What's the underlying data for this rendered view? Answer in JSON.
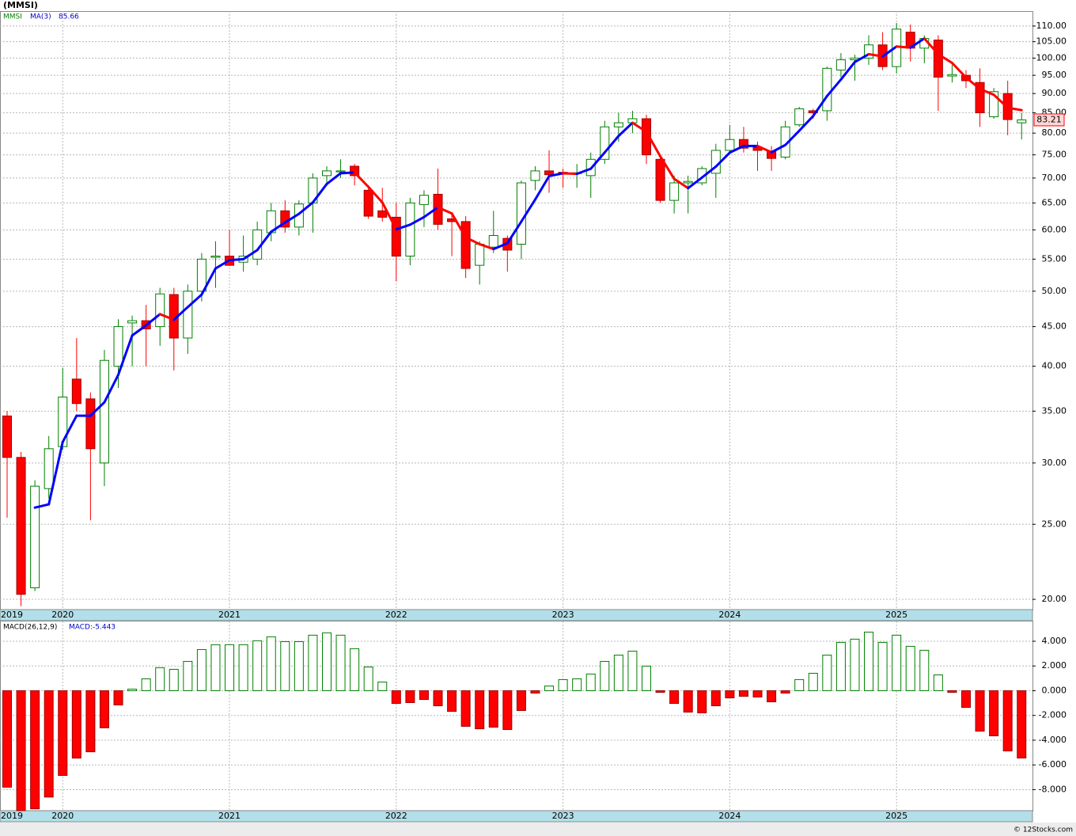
{
  "chart_data": [
    {
      "type": "candlestick",
      "title": "(MMSI)",
      "symbol": "MMSI",
      "log_scale": true,
      "grid": true,
      "up_color": "#008000",
      "down_color": "#ff0000",
      "categories": [
        "2019",
        null,
        null,
        null,
        "2020",
        null,
        null,
        null,
        null,
        null,
        null,
        null,
        null,
        null,
        null,
        null,
        "2021",
        null,
        null,
        null,
        null,
        null,
        null,
        null,
        null,
        null,
        null,
        null,
        "2022",
        null,
        null,
        null,
        null,
        null,
        null,
        null,
        null,
        null,
        null,
        null,
        "2023",
        null,
        null,
        null,
        null,
        null,
        null,
        null,
        null,
        null,
        null,
        null,
        "2024",
        null,
        null,
        null,
        null,
        null,
        null,
        null,
        null,
        null,
        null,
        null,
        "2025",
        null,
        null,
        null,
        null,
        null,
        null,
        null,
        null,
        null
      ],
      "open": [
        34.5,
        30.5,
        20.7,
        27.8,
        31.5,
        38.5,
        36.3,
        30,
        40,
        45.5,
        45.8,
        45,
        49.5,
        43.5,
        50,
        55.3,
        55.5,
        54.5,
        55,
        59.5,
        63.5,
        60.5,
        65,
        70.5,
        71.3,
        72.5,
        67.5,
        63.5,
        62.3,
        55.5,
        64.7,
        66.7,
        62,
        61.5,
        54,
        57,
        58.5,
        57.5,
        69.5,
        71.5,
        71.2,
        71,
        70.5,
        74,
        81.5,
        82.5,
        83.5,
        74,
        65.5,
        69,
        69,
        71,
        76,
        78.5,
        76.7,
        75.8,
        74.5,
        82,
        85.5,
        85.5,
        96.5,
        99.5,
        100,
        104,
        97.5,
        108,
        103,
        105.5,
        94.8,
        95,
        93,
        84,
        90,
        82.5
      ],
      "high": [
        35,
        31,
        28.5,
        32.5,
        39.8,
        43.5,
        37,
        42,
        46,
        46.5,
        48,
        50.5,
        50.5,
        51,
        56,
        58,
        60,
        59,
        61.5,
        65,
        65.5,
        65.5,
        71,
        72.5,
        74,
        73,
        68.5,
        68,
        65,
        66,
        67.5,
        72,
        63,
        62.5,
        58,
        63.5,
        59,
        69.5,
        72.5,
        76,
        72,
        73,
        75.5,
        83,
        85,
        85.5,
        84.5,
        75,
        70.5,
        70.5,
        72.5,
        77.5,
        82,
        81.5,
        78,
        77,
        83,
        86.5,
        86,
        97.5,
        101.5,
        101,
        107,
        108,
        111,
        110.5,
        107,
        107,
        98,
        96.5,
        97,
        91.5,
        93.5,
        85
      ],
      "low": [
        25.5,
        19.6,
        20.5,
        27,
        31.2,
        35,
        25.3,
        28,
        37.5,
        40,
        40,
        42.5,
        39.5,
        41.5,
        48.5,
        50.5,
        54,
        53,
        54,
        58,
        59.5,
        59,
        59.5,
        69,
        70,
        68.5,
        62,
        61.5,
        51.5,
        54,
        60.5,
        60,
        55.5,
        52,
        51,
        56,
        53,
        55,
        67.5,
        67,
        68,
        68,
        66,
        73,
        78,
        80,
        73,
        65,
        63,
        63,
        68.5,
        66,
        75.5,
        75.5,
        71.5,
        71.5,
        74,
        81.5,
        83.5,
        83,
        94.5,
        93.5,
        98,
        96.5,
        95.5,
        99,
        98.5,
        85.5,
        93,
        91.5,
        81.5,
        83.5,
        79.5,
        78.5
      ],
      "close": [
        30.5,
        20.3,
        28,
        31.3,
        36.5,
        35.8,
        31.3,
        40.7,
        45,
        45.8,
        44.7,
        49.6,
        43.5,
        50,
        55,
        55.5,
        54,
        55.5,
        60,
        63.5,
        60.5,
        64.8,
        70,
        71.5,
        71.5,
        70.5,
        62.5,
        62.3,
        55.5,
        65,
        66.5,
        61,
        61.5,
        53.5,
        57.5,
        59,
        56.5,
        69,
        71.5,
        70.7,
        70.8,
        71.1,
        74,
        81.5,
        82.5,
        83.5,
        75,
        65.5,
        69,
        69.3,
        72,
        76,
        78.5,
        76.5,
        76,
        74.2,
        81.5,
        86,
        85,
        97,
        99.5,
        100,
        104,
        97.5,
        109,
        103,
        106,
        94.5,
        95.2,
        93.5,
        85,
        90.5,
        83.3,
        83.21
      ],
      "series": [
        {
          "name": "MA(3)",
          "color": "#0000ff",
          "down_color": "#ff0000",
          "values": [
            null,
            null,
            26.27,
            26.53,
            31.93,
            34.53,
            34.53,
            35.93,
            39,
            43.83,
            45.17,
            46.7,
            45.93,
            47.7,
            49.5,
            53.5,
            54.83,
            55,
            56.5,
            59.67,
            61.33,
            62.93,
            65.1,
            68.77,
            71,
            71.17,
            68.17,
            65.1,
            60.1,
            60.93,
            62.33,
            64.17,
            63,
            58.67,
            57.5,
            56.67,
            57.67,
            61.5,
            65.67,
            70.4,
            71,
            70.87,
            71.97,
            75.53,
            79.33,
            82.5,
            80.33,
            74.67,
            69.83,
            67.93,
            70.1,
            72.43,
            75.5,
            77,
            77,
            75.57,
            77.23,
            80.57,
            84.17,
            89.33,
            93.83,
            98.83,
            101.17,
            100.5,
            103.5,
            103.17,
            106,
            101.17,
            98.57,
            94.4,
            91.23,
            89.67,
            86.27,
            85.66
          ]
        }
      ],
      "ylim": [
        19.4,
        115
      ],
      "yticks": [
        {
          "value": 20,
          "label": "20.00"
        },
        {
          "value": 25,
          "label": "25.00"
        },
        {
          "value": 30,
          "label": "30.00"
        },
        {
          "value": 35,
          "label": "35.00"
        },
        {
          "value": 40,
          "label": "40.00"
        },
        {
          "value": 45,
          "label": "45.00"
        },
        {
          "value": 50,
          "label": "50.00"
        },
        {
          "value": 55,
          "label": "55.00"
        },
        {
          "value": 60,
          "label": "60.00"
        },
        {
          "value": 65,
          "label": "65.00"
        },
        {
          "value": 70,
          "label": "70.00"
        },
        {
          "value": 75,
          "label": "75.00"
        },
        {
          "value": 80,
          "label": "80.00"
        },
        {
          "value": 85,
          "label": "85.00"
        },
        {
          "value": 90,
          "label": "90.00"
        },
        {
          "value": 95,
          "label": "95.00"
        },
        {
          "value": 100,
          "label": "100.00"
        },
        {
          "value": 105,
          "label": "105.00"
        },
        {
          "value": 110,
          "label": "110.00"
        }
      ]
    },
    {
      "type": "bar",
      "title": "MACD(26,12,9)",
      "readout": "MACD:-5.443",
      "grid": true,
      "up_color": "#008000",
      "down_color": "#ff0000",
      "categories": [
        "2019",
        null,
        null,
        null,
        "2020",
        null,
        null,
        null,
        null,
        null,
        null,
        null,
        null,
        null,
        null,
        null,
        "2021",
        null,
        null,
        null,
        null,
        null,
        null,
        null,
        null,
        null,
        null,
        null,
        "2022",
        null,
        null,
        null,
        null,
        null,
        null,
        null,
        null,
        null,
        null,
        null,
        "2023",
        null,
        null,
        null,
        null,
        null,
        null,
        null,
        null,
        null,
        null,
        null,
        "2024",
        null,
        null,
        null,
        null,
        null,
        null,
        null,
        null,
        null,
        null,
        null,
        "2025",
        null,
        null,
        null,
        null,
        null,
        null,
        null,
        null,
        null
      ],
      "values": [
        -7.8,
        -9.7,
        -9.55,
        -8.6,
        -6.85,
        -5.45,
        -4.94,
        -3.0,
        -1.15,
        0.13,
        0.96,
        1.86,
        1.73,
        2.37,
        3.33,
        3.72,
        3.72,
        3.72,
        4.04,
        4.36,
        3.97,
        3.97,
        4.49,
        4.68,
        4.49,
        3.4,
        1.92,
        0.7,
        -1.03,
        -0.96,
        -0.71,
        -1.22,
        -1.67,
        -2.88,
        -3.08,
        -2.95,
        -3.14,
        -1.6,
        -0.19,
        0.38,
        0.9,
        0.96,
        1.35,
        2.37,
        2.88,
        3.2,
        1.99,
        -0.13,
        -1.03,
        -1.73,
        -1.79,
        -1.22,
        -0.58,
        -0.45,
        -0.51,
        -0.9,
        -0.19,
        0.9,
        1.41,
        2.88,
        3.91,
        4.17,
        4.74,
        3.91,
        4.49,
        3.59,
        3.27,
        1.28,
        -0.13,
        -1.35,
        -3.27,
        -3.65,
        -4.87,
        -5.443
      ],
      "ylim": [
        -9.7,
        5.6
      ],
      "yticks": [
        {
          "value": 4,
          "label": "4.000"
        },
        {
          "value": 2,
          "label": "2.000"
        },
        {
          "value": 0,
          "label": "0.000"
        },
        {
          "value": -2,
          "label": "-2.000"
        },
        {
          "value": -4,
          "label": "-4.000"
        },
        {
          "value": -6,
          "label": "-6.000"
        },
        {
          "value": -8,
          "label": "-8.000"
        }
      ]
    }
  ],
  "footer": "© 12Stocks.com"
}
